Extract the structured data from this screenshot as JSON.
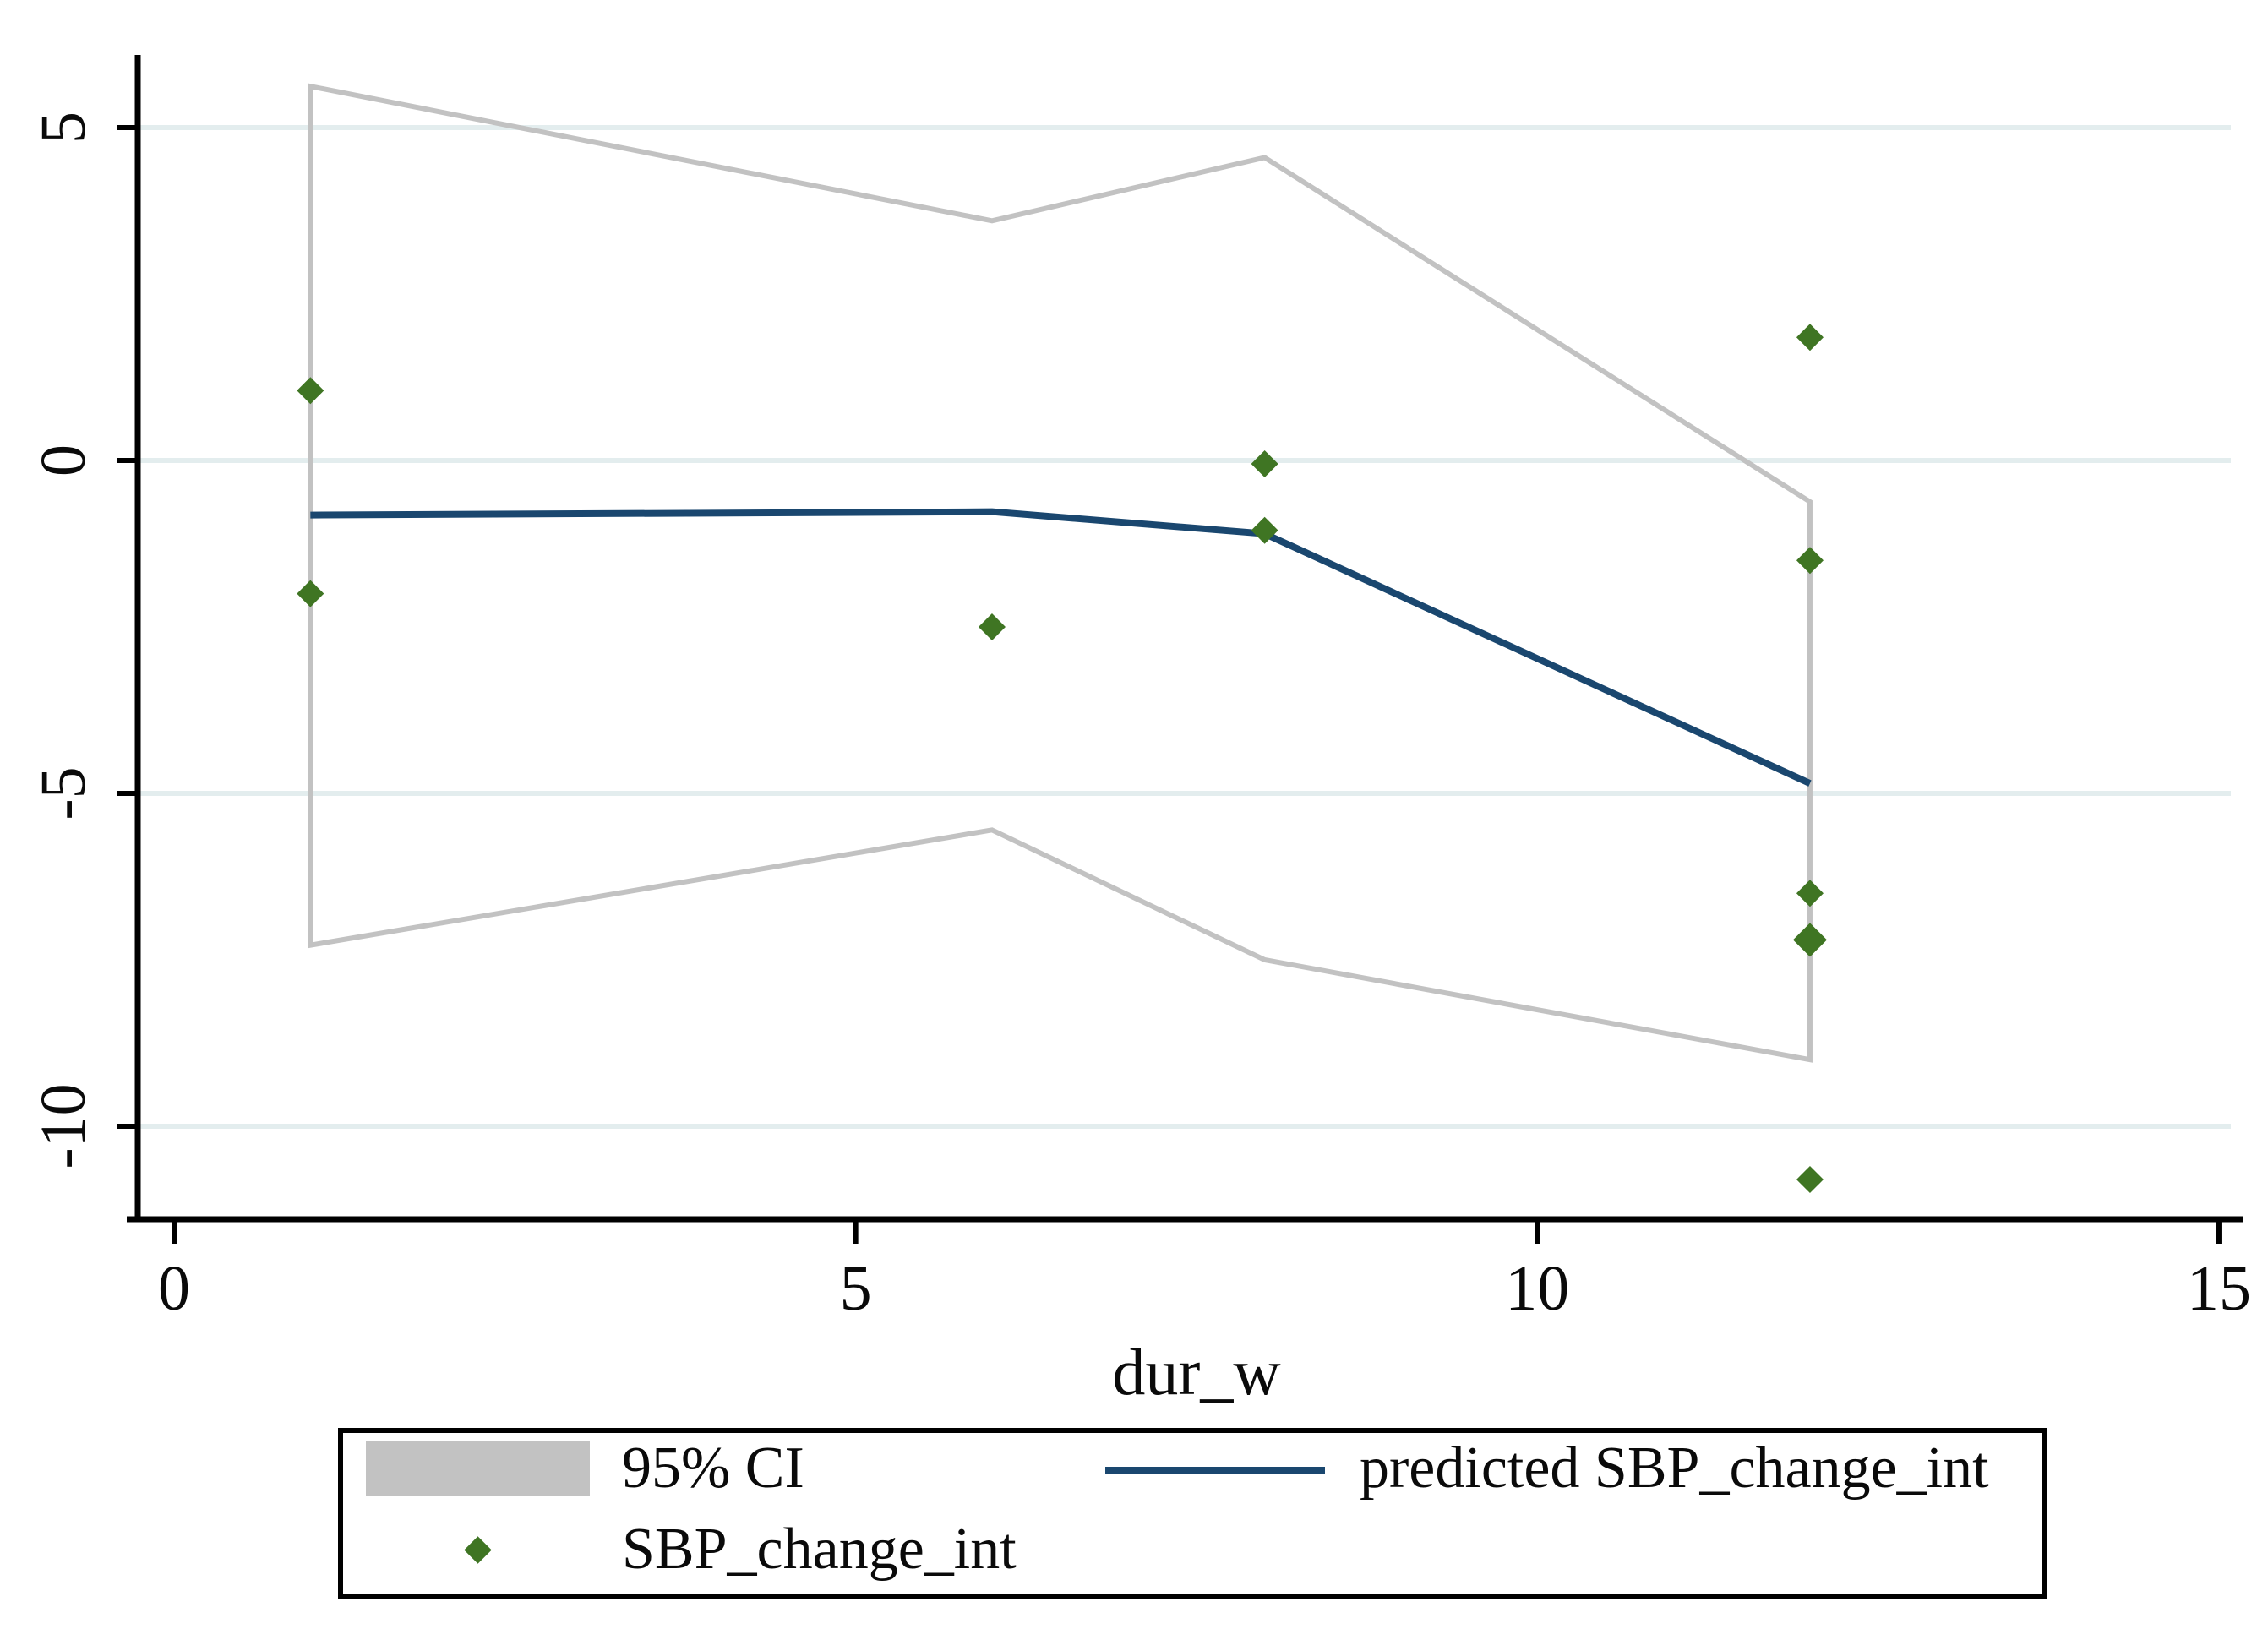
{
  "chart_data": {
    "type": "scatter",
    "title": "",
    "xlabel": "dur_w",
    "ylabel": "",
    "x_ticks": [
      {
        "label": "0",
        "value": 0
      },
      {
        "label": "5",
        "value": 5
      },
      {
        "label": "10",
        "value": 10
      },
      {
        "label": "15",
        "value": 15
      }
    ],
    "y_ticks": [
      {
        "label": "5",
        "value": 5
      },
      {
        "label": "0",
        "value": 0
      },
      {
        "label": "-5",
        "value": -5
      },
      {
        "label": "-10",
        "value": -10
      }
    ],
    "xlim": [
      -0.27,
      15.26
    ],
    "ylim": [
      -11.4,
      6.05
    ],
    "grid": "horizontal",
    "legend_position": "bottom",
    "colors": {
      "ci_outline": "#c2c2c2",
      "predicted_line": "#1a476f",
      "scatter_marker": "#3f7523",
      "gridline": "#e3edee",
      "axis": "#000000",
      "background": "#ffffff"
    },
    "series": [
      {
        "name": "95% CI",
        "type": "ci-band-outline",
        "upper": [
          [
            1,
            5.62
          ],
          [
            6,
            3.6
          ],
          [
            8,
            4.55
          ],
          [
            12,
            -0.62
          ]
        ],
        "lower": [
          [
            1,
            -7.28
          ],
          [
            6,
            -5.55
          ],
          [
            8,
            -7.5
          ],
          [
            12,
            -9.0
          ]
        ]
      },
      {
        "name": "predicted SBP_change_int",
        "type": "line",
        "points": [
          [
            1,
            -0.82
          ],
          [
            6,
            -0.77
          ],
          [
            8,
            -1.1
          ],
          [
            12,
            -4.85
          ]
        ]
      },
      {
        "name": "SBP_change_int",
        "type": "scatter",
        "marker": "diamond",
        "points": [
          [
            1,
            1.05
          ],
          [
            1,
            -2.0
          ],
          [
            6,
            -2.5
          ],
          [
            8,
            -0.05
          ],
          [
            8,
            -1.05
          ],
          [
            12,
            1.85
          ],
          [
            12,
            -1.5
          ],
          [
            12,
            -6.5
          ],
          [
            12,
            -7.2
          ],
          [
            12,
            -10.8
          ]
        ],
        "emphasized_point_index": 8
      }
    ]
  }
}
